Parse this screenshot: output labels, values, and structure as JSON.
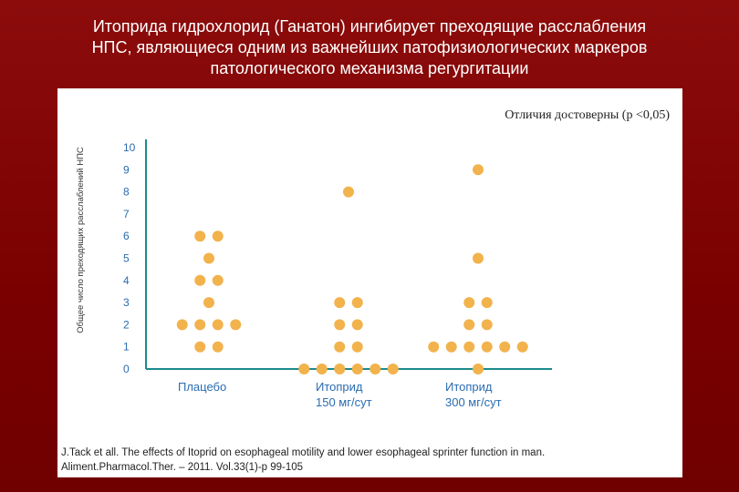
{
  "slide": {
    "title_lines": [
      "Итоприда гидрохлорид (Ганатон) ингибирует преходящие расслабления",
      "НПС, являющиеся одним из важнейших патофизиологических маркеров",
      "патологического механизма регургитации"
    ]
  },
  "chart_data": {
    "type": "scatter",
    "title": "",
    "annotation": "Отличия достоверны (р <0,05)",
    "ylabel": "Общее число преходящих расслаблений НПС",
    "xlabel": "",
    "ylim": [
      0,
      10
    ],
    "yticks": [
      0,
      1,
      2,
      3,
      4,
      5,
      6,
      7,
      8,
      9,
      10
    ],
    "grid": false,
    "categories": [
      {
        "label_lines": [
          "Плацебо"
        ]
      },
      {
        "label_lines": [
          "Итоприд",
          "150 мг/сут"
        ]
      },
      {
        "label_lines": [
          "Итоприд",
          "300 мг/сут"
        ]
      }
    ],
    "series": [
      {
        "values": [
          6,
          6,
          5,
          4,
          4,
          3,
          2,
          2,
          2,
          2,
          1,
          1
        ]
      },
      {
        "values": [
          8,
          3,
          3,
          2,
          2,
          1,
          1,
          0,
          0,
          0,
          0,
          0,
          0
        ]
      },
      {
        "values": [
          9,
          5,
          3,
          3,
          2,
          2,
          1,
          1,
          1,
          1,
          1,
          1,
          0
        ]
      }
    ],
    "point_color": "#f2b24c",
    "axis_color": "#1b8a8a",
    "tick_color": "#2b6cb0"
  },
  "citation_lines": [
    "J.Tack  et  all. The effects of Itoprid on esophageal motility and lower esophageal sprinter function in man.",
    "Aliment.Pharmacol.Ther. – 2011. Vol.33(1)-р 99-105"
  ]
}
